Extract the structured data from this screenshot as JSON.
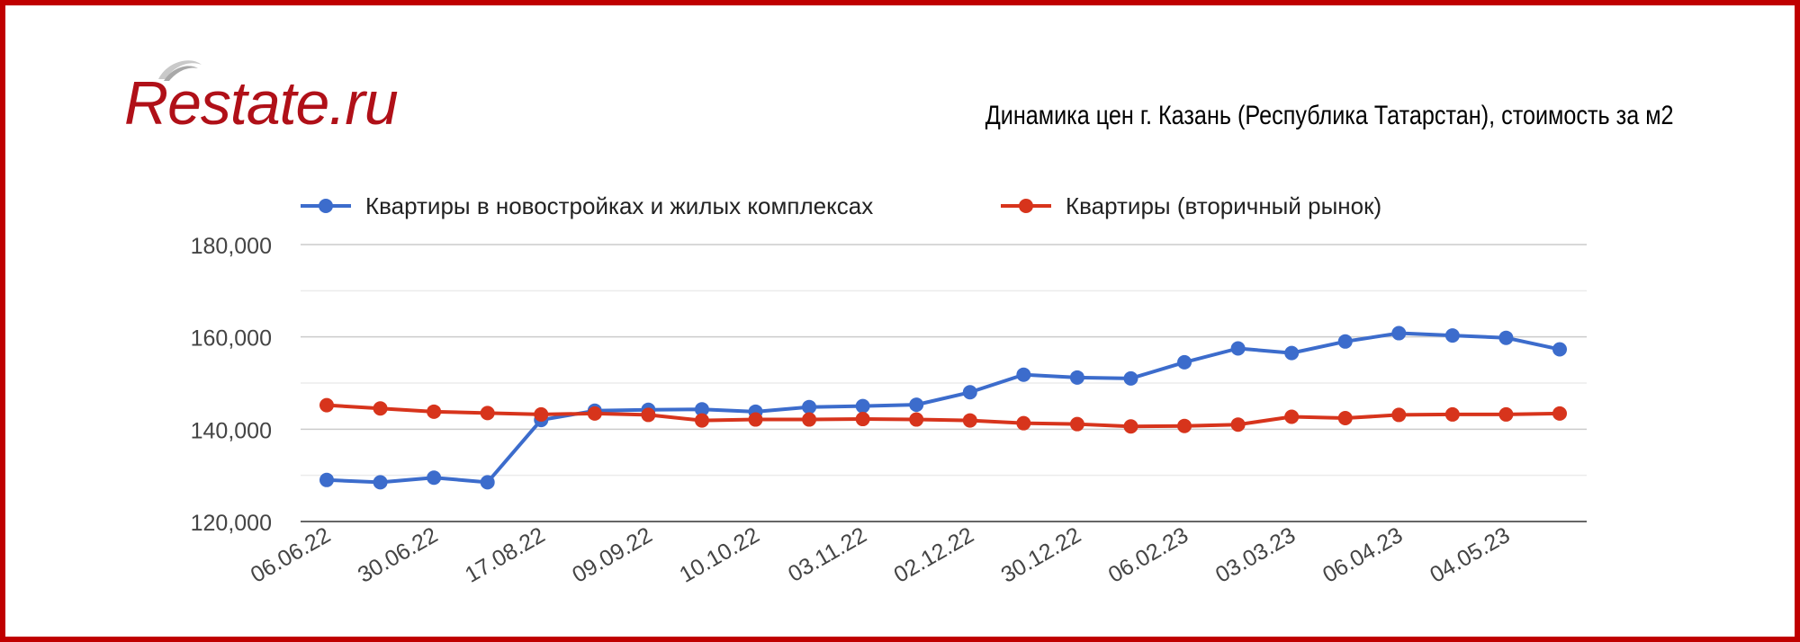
{
  "logo": {
    "text": "Restate.ru"
  },
  "title": "Динамика цен г. Казань (Республика Татарстан), стоимость за м2",
  "colors": {
    "frame": "#c00000",
    "series_new": "#3c6ccc",
    "series_secondary": "#d7341c",
    "grid": "#d9d9d9",
    "axis_text": "#444444"
  },
  "chart_data": {
    "type": "line",
    "title": "Динамика цен г. Казань (Республика Татарстан), стоимость за м2",
    "xlabel": "",
    "ylabel": "",
    "ylim": [
      120000,
      180000
    ],
    "yticks": [
      "120,000",
      "140,000",
      "160,000",
      "180,000"
    ],
    "ytick_values": [
      120000,
      140000,
      160000,
      180000
    ],
    "grid": true,
    "legend_position": "top-left",
    "x_tick_labels": [
      "06.06.22",
      "30.06.22",
      "17.08.22",
      "09.09.22",
      "10.10.22",
      "03.11.22",
      "02.12.22",
      "30.12.22",
      "06.02.23",
      "03.03.23",
      "06.04.23",
      "04.05.23"
    ],
    "x_tick_every": 2,
    "series": [
      {
        "name": "Квартиры в новостройках и жилых комплексах",
        "color": "#3c6ccc",
        "values": [
          129000,
          128500,
          129500,
          128500,
          142000,
          144000,
          144200,
          144300,
          143800,
          144800,
          145000,
          145300,
          148000,
          151800,
          151200,
          151000,
          154500,
          157500,
          156500,
          159000,
          160800,
          160300,
          159800,
          157300
        ]
      },
      {
        "name": "Квартиры (вторичный рынок)",
        "color": "#d7341c",
        "values": [
          145200,
          144500,
          143800,
          143500,
          143200,
          143400,
          143100,
          141900,
          142100,
          142100,
          142200,
          142100,
          141900,
          141300,
          141100,
          140600,
          140700,
          141000,
          142700,
          142400,
          143100,
          143200,
          143200,
          143400
        ]
      }
    ]
  }
}
